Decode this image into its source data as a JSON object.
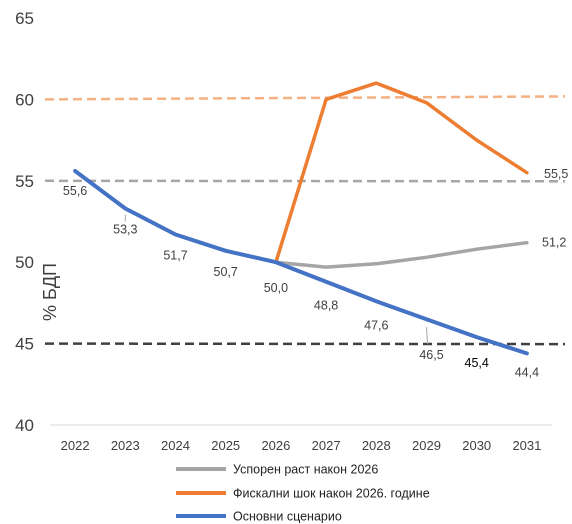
{
  "chart_data": {
    "type": "line",
    "title": "",
    "xlabel": "",
    "ylabel": "% БДП",
    "ylim": [
      40,
      65
    ],
    "yticks": [
      "40",
      "45",
      "50",
      "55",
      "60",
      "65"
    ],
    "yticks_values": [
      40,
      45,
      50,
      55,
      60,
      65
    ],
    "x": [
      "2022",
      "2023",
      "2024",
      "2025",
      "2026",
      "2027",
      "2028",
      "2029",
      "2030",
      "2031"
    ],
    "grid": false,
    "legend_position": "bottom",
    "reference_lines": [
      {
        "y": 60,
        "color": "#F4B183",
        "style": "dashed"
      },
      {
        "y": 55,
        "color": "#A6A6A6",
        "style": "dashed"
      },
      {
        "y": 45,
        "color": "#404040",
        "style": "dashed"
      }
    ],
    "series": [
      {
        "name": "Основни сценарио",
        "color": "#4472C4",
        "values": [
          55.6,
          53.3,
          51.7,
          50.7,
          50.0,
          48.8,
          47.6,
          46.5,
          45.4,
          44.4
        ],
        "labels": [
          "55,6",
          "53,3",
          "51,7",
          "50,7",
          "50,0",
          "48,8",
          "47,6",
          "46,5",
          "45,4",
          "44,4"
        ]
      },
      {
        "name": "Успорен раст након 2026",
        "color": "#A5A5A5",
        "values": [
          null,
          null,
          null,
          null,
          50.0,
          49.7,
          49.9,
          50.3,
          50.8,
          51.2
        ],
        "labels": [
          null,
          null,
          null,
          null,
          null,
          null,
          null,
          null,
          null,
          "51,2"
        ]
      },
      {
        "name": "Фискални шок након 2026. године",
        "color": "#ED7D31",
        "values": [
          null,
          null,
          null,
          null,
          50.0,
          60.0,
          61.0,
          59.8,
          57.5,
          55.5
        ],
        "labels": [
          null,
          null,
          null,
          null,
          null,
          null,
          null,
          null,
          null,
          "55,5"
        ]
      }
    ],
    "legend_order": [
      "Успорен раст након 2026",
      "Фискални шок након 2026. године",
      "Основни сценарио"
    ]
  }
}
